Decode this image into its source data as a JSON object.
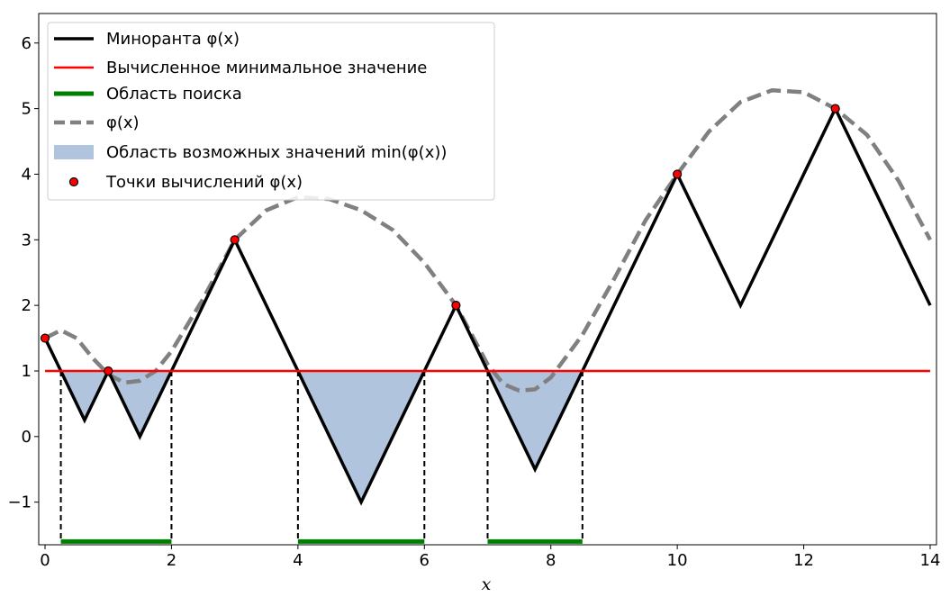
{
  "chart_data": {
    "type": "line",
    "xlabel": "x",
    "ylabel": "",
    "xlim": [
      -0.1,
      14.1
    ],
    "ylim": [
      -1.65,
      6.45
    ],
    "x_ticks": [
      0,
      2,
      4,
      6,
      8,
      10,
      12,
      14
    ],
    "y_ticks": [
      -1,
      0,
      1,
      2,
      3,
      4,
      5,
      6
    ],
    "x_tick_labels": [
      "0",
      "2",
      "4",
      "6",
      "8",
      "10",
      "12",
      "14"
    ],
    "y_tick_labels": [
      "−1",
      "0",
      "1",
      "2",
      "3",
      "4",
      "5",
      "6"
    ],
    "grid": false,
    "legend_position": "top-left",
    "legend": [
      {
        "key": "minorant",
        "label": "Миноранта φ(x)"
      },
      {
        "key": "min_value",
        "label": "Вычисленное минимальное значение"
      },
      {
        "key": "search",
        "label": "Область поиска"
      },
      {
        "key": "phi",
        "label": "φ(x)"
      },
      {
        "key": "region",
        "label": "Область возможных значений min(φ(x))"
      },
      {
        "key": "points",
        "label": "Точки вычислений φ(x)"
      }
    ],
    "series": [
      {
        "key": "minorant",
        "color": "#000000",
        "x": [
          0,
          0.625,
          1,
          1.5,
          3,
          5,
          6.5,
          7.75,
          10,
          11,
          12.5,
          14
        ],
        "y": [
          1.5,
          0.25,
          1,
          0,
          3,
          -1,
          2,
          -0.5,
          4,
          2,
          5,
          2
        ]
      },
      {
        "key": "phi",
        "color": "#808080",
        "x": [
          0,
          0.25,
          0.5,
          0.75,
          1,
          1.25,
          1.5,
          1.75,
          2,
          2.5,
          3,
          3.5,
          4,
          4.5,
          5,
          5.5,
          6,
          6.5,
          7,
          7.25,
          7.5,
          7.75,
          8,
          8.5,
          9,
          9.5,
          10,
          10.5,
          11,
          11.5,
          12,
          12.5,
          13,
          13.5,
          14
        ],
        "y": [
          1.5,
          1.62,
          1.5,
          1.2,
          0.95,
          0.82,
          0.85,
          1.0,
          1.3,
          2.1,
          3.0,
          3.45,
          3.65,
          3.62,
          3.45,
          3.15,
          2.65,
          2.0,
          1.1,
          0.8,
          0.7,
          0.72,
          0.9,
          1.55,
          2.4,
          3.3,
          4.0,
          4.65,
          5.1,
          5.28,
          5.25,
          5.0,
          4.6,
          3.9,
          3.0
        ]
      }
    ],
    "min_value": 1,
    "search_intervals": [
      [
        0.25,
        2
      ],
      [
        4,
        6
      ],
      [
        7,
        8.5
      ]
    ],
    "search_y": -1.6,
    "region_polygons": [
      [
        [
          0.25,
          1
        ],
        [
          0.625,
          0.25
        ],
        [
          1,
          1
        ]
      ],
      [
        [
          1,
          1
        ],
        [
          1.5,
          0
        ],
        [
          2,
          1
        ]
      ],
      [
        [
          4,
          1
        ],
        [
          5,
          -1
        ],
        [
          6,
          1
        ]
      ],
      [
        [
          7,
          1
        ],
        [
          7.75,
          -0.5
        ],
        [
          8.5,
          1
        ]
      ]
    ],
    "points": [
      [
        0,
        1.5
      ],
      [
        1,
        1
      ],
      [
        3,
        3
      ],
      [
        6.5,
        2
      ],
      [
        10,
        4
      ],
      [
        12.5,
        5
      ]
    ],
    "colors": {
      "minorant": "#000000",
      "min_value": "#ff0000",
      "search": "#008000",
      "phi": "#808080",
      "region": "#b0c4de",
      "points": "#ff0000"
    }
  }
}
